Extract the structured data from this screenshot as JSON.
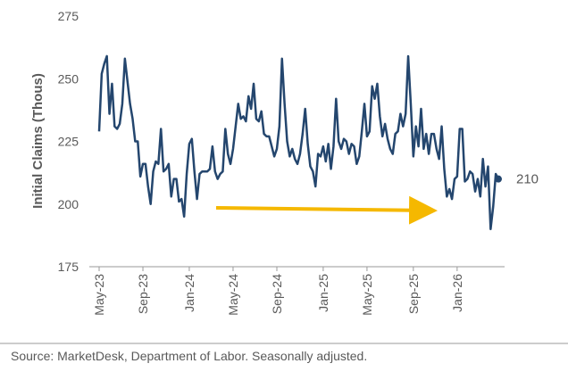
{
  "chart_data": {
    "type": "line",
    "y_label": "Initial Claims (Thous)",
    "source": "Source: MarketDesk, Department of Labor. Seasonally adjusted.",
    "categories": [
      "May-23",
      null,
      null,
      null,
      null,
      null,
      null,
      null,
      null,
      null,
      null,
      null,
      null,
      null,
      null,
      null,
      null,
      "Sep-23",
      null,
      null,
      null,
      null,
      null,
      null,
      null,
      null,
      null,
      null,
      null,
      null,
      null,
      null,
      null,
      null,
      null,
      "Jan-24",
      null,
      null,
      null,
      null,
      null,
      null,
      null,
      null,
      null,
      null,
      null,
      null,
      null,
      null,
      null,
      null,
      "May-24",
      null,
      null,
      null,
      null,
      null,
      null,
      null,
      null,
      null,
      null,
      null,
      null,
      null,
      null,
      null,
      null,
      "Sep-24",
      null,
      null,
      null,
      null,
      null,
      null,
      null,
      null,
      null,
      null,
      null,
      null,
      null,
      null,
      null,
      null,
      null,
      "Jan-25",
      null,
      null,
      null,
      null,
      null,
      null,
      null,
      null,
      null,
      null,
      null,
      null,
      null,
      null,
      null,
      null,
      "May-25",
      null,
      null,
      null,
      null,
      null,
      null,
      null,
      null,
      null,
      null,
      null,
      null,
      null,
      null,
      null,
      null,
      null,
      "Sep-25",
      null,
      null,
      null,
      null,
      null,
      null,
      null,
      null,
      null,
      null,
      null,
      null,
      null,
      null,
      null,
      null,
      "Jan-26",
      null,
      null,
      null,
      null,
      null,
      null,
      null,
      null,
      null,
      null,
      null,
      null,
      null,
      null,
      null,
      null
    ],
    "series": [
      {
        "name": "Initial Claims",
        "color": "#24466e",
        "values": [
          229,
          252,
          256,
          259,
          236,
          248,
          231,
          230,
          232,
          240,
          258,
          249,
          240,
          234,
          225,
          225,
          211,
          216,
          216,
          207,
          200,
          213,
          217,
          216,
          230,
          213,
          214,
          216,
          203,
          210,
          210,
          201,
          202,
          195,
          212,
          224,
          226,
          213,
          202,
          212,
          213,
          213,
          213,
          214,
          223,
          213,
          210,
          212,
          213,
          230,
          220,
          216,
          222,
          231,
          240,
          234,
          235,
          233,
          243,
          238,
          248,
          234,
          233,
          237,
          228,
          227,
          227,
          223,
          219,
          222,
          231,
          258,
          240,
          225,
          219,
          222,
          218,
          216,
          220,
          228,
          238,
          224,
          215,
          213,
          207,
          220,
          219,
          223,
          217,
          224,
          214,
          223,
          242,
          225,
          222,
          226,
          225,
          220,
          224,
          223,
          216,
          219,
          229,
          240,
          227,
          229,
          247,
          242,
          248,
          235,
          227,
          232,
          226,
          222,
          220,
          228,
          229,
          236,
          231,
          236,
          259,
          240,
          219,
          231,
          223,
          238,
          222,
          228,
          220,
          228,
          228,
          222,
          218,
          231,
          214,
          203,
          206,
          202,
          210,
          211,
          230,
          230,
          209,
          210,
          213,
          212,
          205,
          210,
          203,
          218,
          207,
          215,
          190,
          199,
          212,
          210
        ]
      }
    ],
    "ylim": [
      175,
      275
    ],
    "yticks": [
      175,
      200,
      225,
      250,
      275
    ],
    "grid": false
  }
}
